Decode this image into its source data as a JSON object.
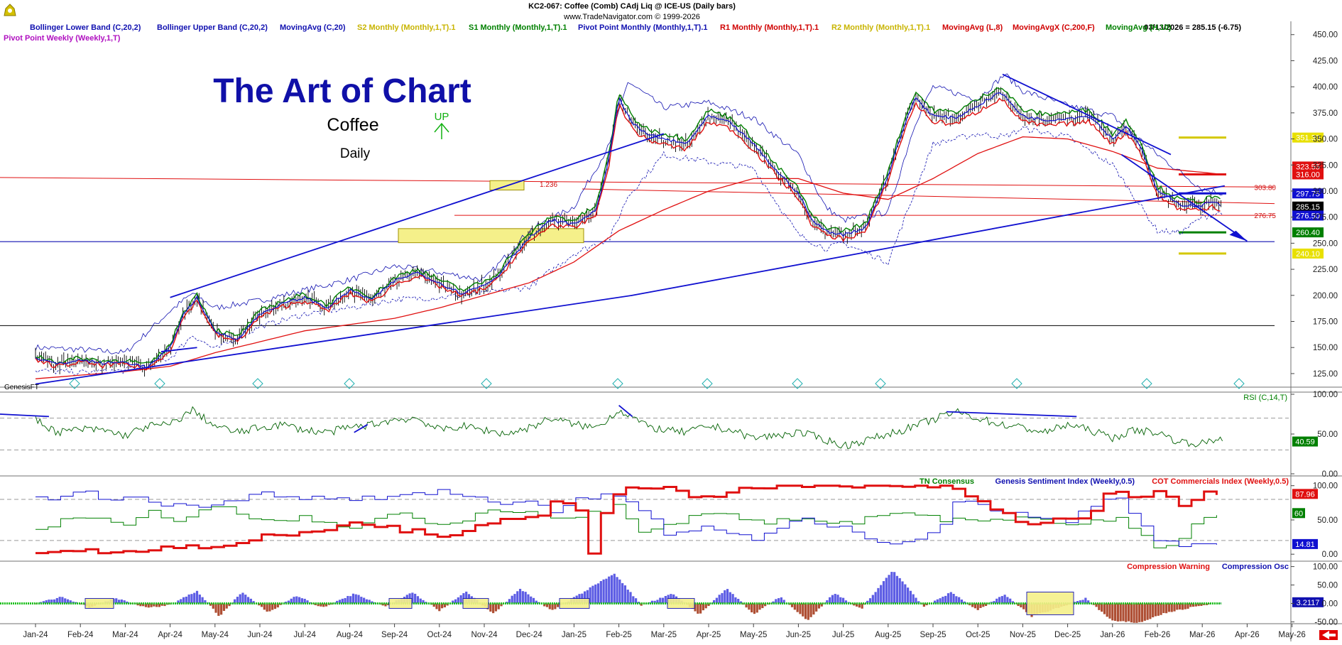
{
  "header": {
    "line1": "KC2-067:  Coffee (Comb) CAdj Liq @ ICE-US  (Daily bars)",
    "line2": "www.TradeNavigator.com © 1999-2026",
    "last_price": "03/13/2026 = 285.15 (-6.75)"
  },
  "legend": [
    {
      "text": "Bollinger Lower Band (C,20,2)",
      "color": "#1010b0"
    },
    {
      "text": "Bollinger Upper Band (C,20,2)",
      "color": "#1010b0"
    },
    {
      "text": "MovingAvg (C,20)",
      "color": "#1010b0"
    },
    {
      "text": "S2 Monthly (Monthly,1,T).1",
      "color": "#c8b400"
    },
    {
      "text": "S1 Monthly (Monthly,1,T).1",
      "color": "#008000"
    },
    {
      "text": "Pivot Point Monthly (Monthly,1,T).1",
      "color": "#1010b0"
    },
    {
      "text": "R1 Monthly (Monthly,1,T).1",
      "color": "#d00000"
    },
    {
      "text": "R2 Monthly (Monthly,1,T).1",
      "color": "#c8b400"
    },
    {
      "text": "MovingAvg (L,8)",
      "color": "#d00000"
    },
    {
      "text": "MovingAvgX (C,200,F)",
      "color": "#d00000"
    },
    {
      "text": "MovingAvg (H,10)",
      "color": "#008000"
    }
  ],
  "legend2": "Pivot Point Weekly (Weekly,1,T)",
  "annotations": {
    "title": "The Art of Chart",
    "subtitle": "Coffee",
    "timeframe": "Daily",
    "up_label": "UP",
    "fib_label": "1.236",
    "watermark": "GenesisFT"
  },
  "chart_data": [
    {
      "type": "line",
      "panel": "price",
      "x_labels": [
        "Jan-24",
        "Feb-24",
        "Mar-24",
        "Apr-24",
        "May-24",
        "Jun-24",
        "Jul-24",
        "Aug-24",
        "Sep-24",
        "Oct-24",
        "Nov-24",
        "Dec-24",
        "Jan-25",
        "Feb-25",
        "Mar-25",
        "Apr-25",
        "May-25",
        "Jun-25",
        "Jul-25",
        "Aug-25",
        "Sep-25",
        "Oct-25",
        "Nov-25",
        "Dec-25",
        "Jan-26",
        "Feb-26",
        "Mar-26",
        "Apr-26",
        "May-26"
      ],
      "ylim": [
        112,
        458
      ],
      "y_ticks": [
        125,
        150,
        175,
        200,
        225,
        250,
        275,
        300,
        325,
        350,
        375,
        400,
        425,
        450
      ],
      "series": [
        {
          "name": "Close",
          "x": [
            0,
            0.5,
            1,
            1.5,
            2,
            2.5,
            3,
            3.3,
            3.6,
            4,
            4.5,
            5,
            5.5,
            6,
            6.5,
            7,
            7.5,
            8,
            8.5,
            9,
            9.5,
            10,
            10.3,
            10.6,
            11,
            11.5,
            12,
            12.5,
            12.8,
            13,
            13.3,
            13.6,
            14,
            14.5,
            15,
            15.5,
            16,
            16.5,
            17,
            17.3,
            17.6,
            18,
            18.5,
            19,
            19.3,
            19.6,
            20,
            20.5,
            21,
            21.5,
            22,
            22.5,
            23,
            23.5,
            24,
            24.3,
            24.6,
            25,
            25.5,
            26,
            26.2,
            26.45
          ],
          "y": [
            140,
            134,
            138,
            135,
            136,
            131,
            150,
            182,
            198,
            165,
            158,
            182,
            192,
            198,
            188,
            205,
            196,
            214,
            222,
            212,
            202,
            210,
            218,
            236,
            255,
            272,
            268,
            282,
            335,
            390,
            365,
            355,
            350,
            345,
            372,
            365,
            345,
            320,
            298,
            272,
            262,
            258,
            265,
            315,
            355,
            390,
            372,
            370,
            382,
            395,
            372,
            368,
            370,
            372,
            350,
            362,
            345,
            300,
            287,
            286,
            291,
            285.15
          ]
        },
        {
          "name": "MovingAvgX (C,200,F)",
          "x": [
            0,
            2,
            3,
            4,
            6,
            8,
            9,
            10,
            11,
            12,
            13,
            14,
            15,
            16,
            17,
            18,
            19,
            20,
            21,
            22,
            23,
            24,
            25,
            26,
            26.45
          ],
          "y": [
            120,
            127,
            132,
            145,
            166,
            178,
            188,
            200,
            212,
            232,
            262,
            282,
            300,
            312,
            312,
            298,
            292,
            312,
            336,
            352,
            350,
            338,
            322,
            318,
            316
          ]
        },
        {
          "name": "Bollinger Upper Band (C,20,2)",
          "x": [
            0,
            1,
            2,
            3,
            3.5,
            4,
            5,
            6,
            7,
            8,
            9,
            10,
            11,
            12,
            12.8,
            13.2,
            14,
            15,
            16,
            17,
            17.6,
            18,
            19,
            19.6,
            20,
            21,
            21.6,
            22,
            23,
            24,
            25,
            26,
            26.45
          ],
          "y": [
            150,
            148,
            145,
            185,
            202,
            188,
            195,
            205,
            215,
            228,
            222,
            215,
            262,
            285,
            345,
            405,
            380,
            385,
            370,
            335,
            285,
            272,
            280,
            365,
            400,
            388,
            412,
            396,
            382,
            372,
            335,
            302,
            298
          ]
        },
        {
          "name": "Bollinger Lower Band (C,20,2)",
          "x": [
            0,
            1,
            2,
            3,
            3.5,
            4,
            5,
            6,
            7,
            8,
            9,
            10,
            11,
            12,
            12.8,
            13.2,
            14,
            15,
            16,
            17,
            17.6,
            18,
            19,
            19.6,
            20,
            21,
            21.6,
            22,
            23,
            24,
            25,
            25.5,
            26,
            26.45
          ],
          "y": [
            128,
            126,
            128,
            140,
            162,
            148,
            170,
            182,
            188,
            196,
            198,
            202,
            208,
            240,
            255,
            295,
            335,
            328,
            322,
            258,
            245,
            250,
            232,
            300,
            345,
            355,
            352,
            360,
            352,
            325,
            262,
            260,
            275,
            280
          ]
        }
      ],
      "reference_lines": [
        {
          "name": "Pivot Point Weekly",
          "value": 297.75
        },
        {
          "name": "R2 Monthly",
          "value": 351.3
        },
        {
          "name": "R1 Monthly",
          "value": 316.0
        },
        {
          "name": "S1 Monthly",
          "value": 260.4
        },
        {
          "name": "S2 Monthly",
          "value": 240.1
        },
        {
          "name": "MovingAvgX (C,200,F)",
          "value": 323.55
        },
        {
          "name": "Horizontal line",
          "value": 303.8
        },
        {
          "name": "Horizontal line",
          "value": 276.75
        },
        {
          "name": "Horizontal line",
          "value": 171.0
        }
      ],
      "y_tags": [
        {
          "text": "351.30",
          "value": 351.3,
          "bg": "#e8e000",
          "fg": "#ffffff"
        },
        {
          "text": "323.55",
          "value": 323.55,
          "bg": "#e01010",
          "fg": "#ffffff"
        },
        {
          "text": "316.00",
          "value": 316.0,
          "bg": "#e01010",
          "fg": "#ffffff"
        },
        {
          "text": "297.75",
          "value": 297.75,
          "bg": "#1010d0",
          "fg": "#ffffff"
        },
        {
          "text": "285.15",
          "value": 285.15,
          "bg": "#000000",
          "fg": "#ffffff"
        },
        {
          "text": "276.50",
          "value": 276.5,
          "bg": "#1010d0",
          "fg": "#ffffff"
        },
        {
          "text": "260.40",
          "value": 260.4,
          "bg": "#008000",
          "fg": "#ffffff"
        },
        {
          "text": "240.10",
          "value": 240.1,
          "bg": "#e8e000",
          "fg": "#ffffff"
        }
      ],
      "inline_labels": [
        {
          "text": "303.80",
          "value": 303.8
        },
        {
          "text": "276.75",
          "value": 276.75
        }
      ]
    },
    {
      "type": "line",
      "panel": "rsi",
      "title": "RSI (C,14,T)",
      "ylim": [
        0,
        100
      ],
      "y_ticks": [
        0,
        50,
        100
      ],
      "tag": "40.59",
      "tag_value": 40.59,
      "series": [
        {
          "name": "RSI (C,14,T)",
          "x": [
            0,
            0.5,
            1,
            1.5,
            2,
            2.5,
            3,
            3.5,
            4,
            4.5,
            5,
            5.5,
            6,
            6.5,
            7,
            7.5,
            8,
            8.5,
            9,
            9.5,
            10,
            10.5,
            11,
            11.5,
            12,
            12.5,
            13,
            13.3,
            13.6,
            14,
            14.5,
            15,
            15.5,
            16,
            16.5,
            17,
            17.5,
            18,
            18.5,
            19,
            19.5,
            20,
            20.5,
            21,
            21.5,
            22,
            22.5,
            23,
            23.5,
            24,
            24.5,
            25,
            25.5,
            26,
            26.45
          ],
          "y": [
            68,
            52,
            56,
            55,
            48,
            60,
            62,
            80,
            60,
            52,
            58,
            62,
            55,
            52,
            58,
            62,
            68,
            70,
            55,
            60,
            55,
            50,
            58,
            70,
            62,
            58,
            80,
            72,
            60,
            55,
            52,
            60,
            55,
            45,
            48,
            52,
            45,
            35,
            42,
            50,
            58,
            68,
            78,
            70,
            62,
            58,
            52,
            62,
            55,
            45,
            55,
            52,
            40,
            38,
            45
          ]
        }
      ]
    },
    {
      "type": "line",
      "panel": "sentiment",
      "title": "TN Consensus",
      "ylim": [
        -5,
        108
      ],
      "y_ticks": [
        0,
        50,
        100
      ],
      "tags": [
        {
          "text": "87.96",
          "value": 87.96
        },
        {
          "text": "60",
          "value": 60
        },
        {
          "text": "14.81",
          "value": 14.81
        }
      ],
      "series": [
        {
          "name": "TN Consensus",
          "x": [
            0,
            1,
            2,
            2.5,
            3,
            4,
            5,
            6,
            7,
            8,
            9,
            10,
            11,
            12,
            12.5,
            13,
            13.5,
            14,
            15,
            16,
            17,
            18,
            19,
            20,
            21,
            22,
            23,
            24,
            25,
            25.5,
            26,
            26.45
          ],
          "y": [
            38,
            55,
            42,
            60,
            48,
            72,
            48,
            56,
            38,
            60,
            42,
            62,
            58,
            50,
            65,
            70,
            30,
            40,
            58,
            48,
            55,
            42,
            60,
            55,
            45,
            52,
            42,
            55,
            10,
            22,
            55,
            60
          ]
        },
        {
          "name": "Genesis Sentiment Index (Weekly,0.5)",
          "x": [
            0,
            1,
            2,
            3,
            4,
            5,
            6,
            7,
            8,
            9,
            10,
            11,
            11.5,
            12,
            13,
            14,
            15,
            16,
            17,
            18,
            19,
            20,
            20.5,
            21,
            22,
            23,
            23.5,
            24,
            25,
            26,
            26.45
          ],
          "y": [
            78,
            88,
            82,
            70,
            72,
            88,
            85,
            80,
            88,
            92,
            75,
            82,
            60,
            80,
            88,
            30,
            40,
            22,
            48,
            35,
            15,
            30,
            80,
            75,
            55,
            48,
            70,
            85,
            15,
            14,
            14.81
          ]
        },
        {
          "name": "COT Commercials Index (Weekly,0.5)",
          "x": [
            0,
            1,
            2,
            3,
            4,
            5,
            6,
            7,
            8,
            9,
            10,
            10.5,
            11,
            11.5,
            12,
            12.3,
            12.6,
            13,
            13.5,
            14,
            15,
            16,
            17,
            18,
            19,
            19.5,
            20,
            20.5,
            21,
            21.5,
            22,
            23,
            23.5,
            24,
            24.5,
            25,
            25.5,
            26,
            26.45
          ],
          "y": [
            2,
            6,
            3,
            8,
            14,
            22,
            30,
            45,
            38,
            22,
            42,
            60,
            50,
            72,
            70,
            2,
            60,
            100,
            100,
            96,
            78,
            100,
            100,
            98,
            100,
            100,
            100,
            90,
            75,
            60,
            40,
            52,
            60,
            100,
            85,
            95,
            70,
            88,
            87.96
          ]
        }
      ]
    },
    {
      "type": "area",
      "panel": "compression",
      "title": "Compression Osc",
      "ylim": [
        -55,
        105
      ],
      "y_ticks": [
        -50,
        0,
        50,
        100
      ],
      "tag": "3.2117",
      "tag_value": 3.2117,
      "series": [
        {
          "name": "Compression Osc",
          "x": [
            0,
            0.6,
            1.2,
            1.8,
            2.5,
            3,
            3.6,
            4.1,
            4.6,
            5.2,
            5.8,
            6.4,
            7.1,
            7.8,
            8.4,
            9,
            9.6,
            10.2,
            10.8,
            11.5,
            12.2,
            12.9,
            13.5,
            14.2,
            14.8,
            15.4,
            16,
            16.6,
            17.2,
            17.8,
            18.4,
            19.1,
            19.8,
            20.4,
            21,
            21.6,
            22.2,
            22.8,
            23.4,
            24,
            24.6,
            25.2,
            25.8,
            26.45
          ],
          "y": [
            0,
            18,
            -10,
            14,
            -12,
            -4,
            34,
            -35,
            30,
            -25,
            22,
            -12,
            26,
            -8,
            30,
            -20,
            32,
            -28,
            40,
            -20,
            30,
            82,
            -5,
            26,
            -30,
            42,
            -30,
            18,
            -48,
            28,
            -16,
            90,
            -10,
            30,
            -18,
            24,
            -35,
            -12,
            14,
            -48,
            -52,
            -25,
            -10,
            3.2
          ]
        }
      ],
      "legend": [
        {
          "text": "Compression Warning",
          "color": "#e01010"
        },
        {
          "text": "Compression Osc",
          "color": "#1010b0"
        }
      ]
    }
  ]
}
